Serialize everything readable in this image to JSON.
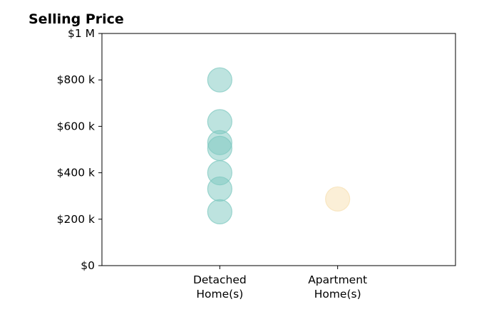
{
  "chart_data": {
    "type": "scatter",
    "title": "Selling Price",
    "xlabel": "",
    "ylabel": "",
    "categories": [
      "Detached\nHome(s)",
      "Apartment\nHome(s)"
    ],
    "xlim": [
      -1,
      2
    ],
    "ylim": [
      0,
      1000000
    ],
    "yticks": [
      {
        "value": 0,
        "label": "$0"
      },
      {
        "value": 200000,
        "label": "$200 k"
      },
      {
        "value": 400000,
        "label": "$400 k"
      },
      {
        "value": 600000,
        "label": "$600 k"
      },
      {
        "value": 800000,
        "label": "$800 k"
      },
      {
        "value": 1000000,
        "label": "$1 M"
      }
    ],
    "grid": false,
    "series": [
      {
        "category": "Detached\nHome(s)",
        "color": "#7cc7bf",
        "values": [
          800000,
          620000,
          530000,
          505000,
          400000,
          330000,
          232000
        ]
      },
      {
        "category": "Apartment\nHome(s)",
        "color": "#f7dfb0",
        "values": [
          287000
        ]
      }
    ]
  }
}
